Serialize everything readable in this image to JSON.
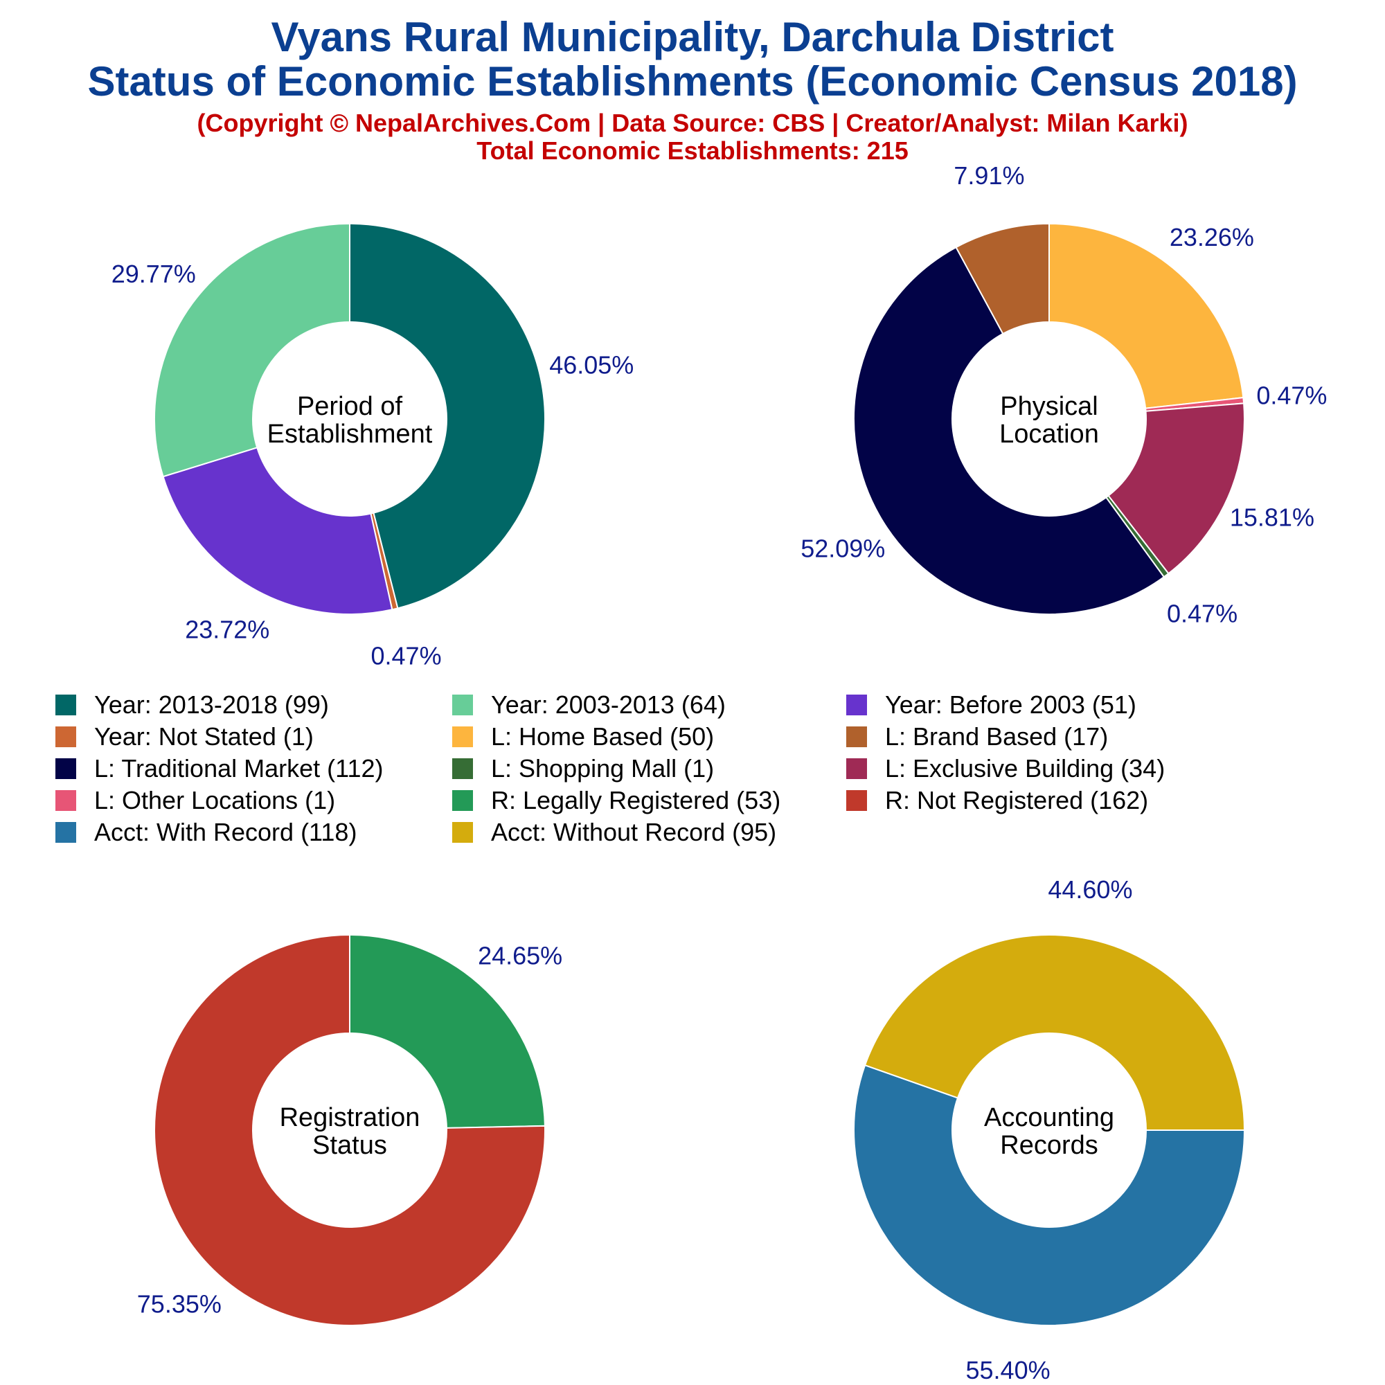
{
  "header": {
    "title_line1": "Vyans Rural Municipality, Darchula District",
    "title_line2": "Status of Economic Establishments (Economic Census 2018)",
    "copyright": "(Copyright © NepalArchives.Com | Data Source: CBS | Creator/Analyst: Milan Karki)",
    "total": "Total Economic Establishments: 215"
  },
  "legend": [
    {
      "label": "Year: 2013-2018 (99)",
      "color": "#016766"
    },
    {
      "label": "Year: 2003-2013 (64)",
      "color": "#67cd98"
    },
    {
      "label": "Year: Before 2003 (51)",
      "color": "#6733cd"
    },
    {
      "label": "Year: Not Stated (1)",
      "color": "#cd6733"
    },
    {
      "label": "L: Home Based (50)",
      "color": "#fdb53e"
    },
    {
      "label": "L: Brand Based (17)",
      "color": "#b0612c"
    },
    {
      "label": "L: Traditional Market (112)",
      "color": "#020347"
    },
    {
      "label": "L: Shopping Mall (1)",
      "color": "#366d35"
    },
    {
      "label": "L: Exclusive Building (34)",
      "color": "#9f2a55"
    },
    {
      "label": "L: Other Locations (1)",
      "color": "#e75576"
    },
    {
      "label": "R: Legally Registered (53)",
      "color": "#239a57"
    },
    {
      "label": "R: Not Registered (162)",
      "color": "#c0392b"
    },
    {
      "label": "Acct: With Record (118)",
      "color": "#2573a4"
    },
    {
      "label": "Acct: Without Record (95)",
      "color": "#d4ac0d"
    }
  ],
  "chart_data": [
    {
      "type": "pie",
      "center_label": [
        "Period of",
        "Establishment"
      ],
      "categories": [
        "Year: 2013-2018",
        "Year: Not Stated",
        "Year: Before 2003",
        "Year: 2003-2013"
      ],
      "values": [
        99,
        1,
        51,
        64
      ],
      "labels": [
        "46.05%",
        "0.47%",
        "23.72%",
        "29.77%"
      ],
      "colors": [
        "#016766",
        "#cd6733",
        "#6733cd",
        "#67cd98"
      ]
    },
    {
      "type": "pie",
      "center_label": [
        "Physical",
        "Location"
      ],
      "categories": [
        "L: Home Based",
        "L: Other Locations",
        "L: Exclusive Building",
        "L: Shopping Mall",
        "L: Traditional Market",
        "L: Brand Based"
      ],
      "values": [
        50,
        1,
        34,
        1,
        112,
        17
      ],
      "labels": [
        "23.26%",
        "0.47%",
        "15.81%",
        "0.47%",
        "52.09%",
        "7.91%"
      ],
      "colors": [
        "#fdb53e",
        "#e75576",
        "#9f2a55",
        "#366d35",
        "#020347",
        "#b0612c"
      ]
    },
    {
      "type": "pie",
      "center_label": [
        "Registration",
        "Status"
      ],
      "categories": [
        "R: Legally Registered",
        "R: Not Registered"
      ],
      "values": [
        53,
        162
      ],
      "labels": [
        "24.65%",
        "75.35%"
      ],
      "colors": [
        "#239a57",
        "#c0392b"
      ]
    },
    {
      "type": "pie",
      "center_label": [
        "Accounting",
        "Records"
      ],
      "categories": [
        "Acct: With Record",
        "Acct: Without Record"
      ],
      "values": [
        118,
        95
      ],
      "labels": [
        "55.40%",
        "44.60%"
      ],
      "colors": [
        "#2573a4",
        "#d4ac0d"
      ]
    }
  ]
}
